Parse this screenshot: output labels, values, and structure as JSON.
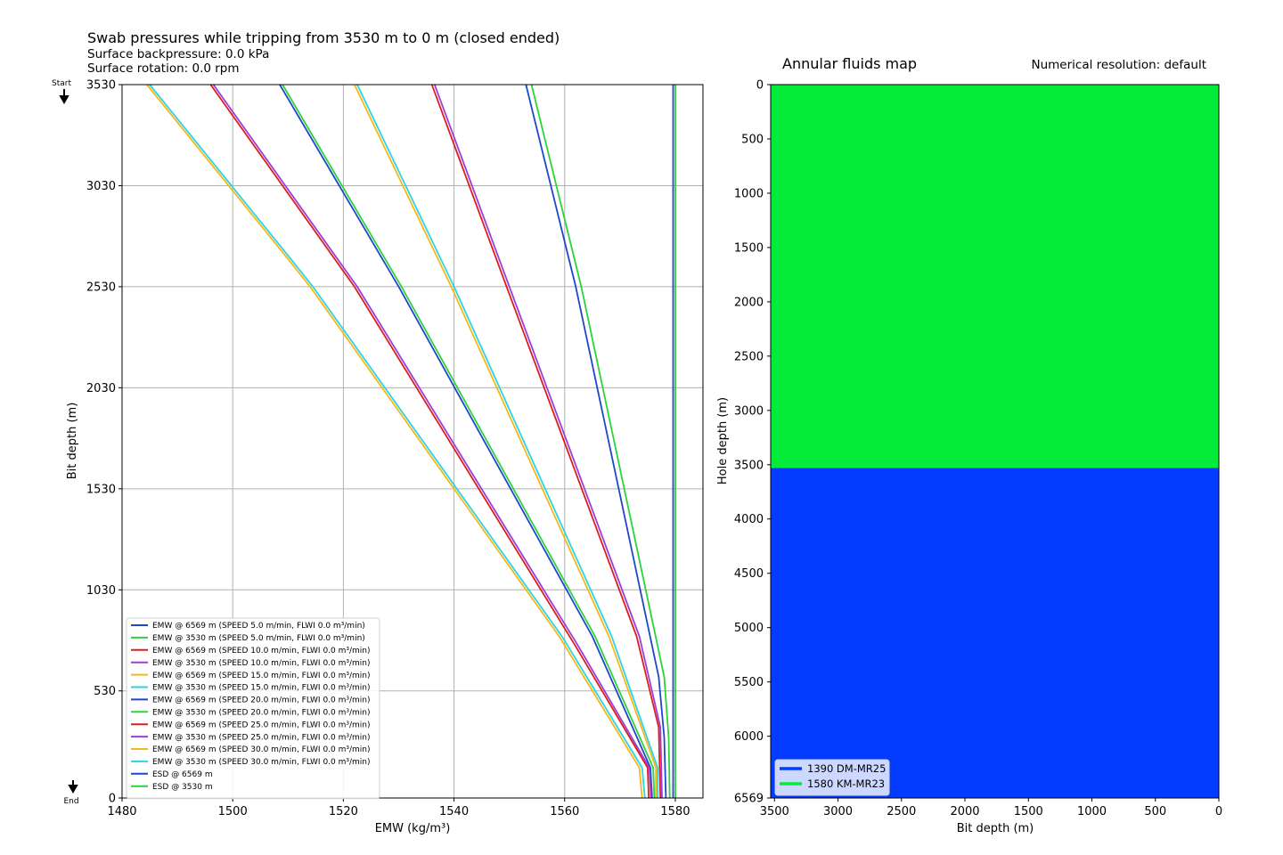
{
  "chart_data": [
    {
      "type": "line",
      "title": "Swab pressures while tripping from 3530 m to 0 m (closed ended)",
      "subtitle_lines": [
        "Surface backpressure: 0.0 kPa",
        "Surface rotation: 0.0 rpm"
      ],
      "xlabel": "EMW (kg/m³)",
      "ylabel": "Bit depth (m)",
      "xlim": [
        1480,
        1585
      ],
      "ylim": [
        0,
        3530
      ],
      "y_inverted_display": true,
      "xticks": [
        1480,
        1500,
        1520,
        1540,
        1560,
        1580
      ],
      "yticks": [
        3530,
        3030,
        2530,
        2030,
        1530,
        1030,
        530,
        0
      ],
      "grid": true,
      "start_label": "Start",
      "end_label": "End",
      "legend_position": "lower-left",
      "series": [
        {
          "name": "EMW @ 6569 m (SPEED 5.0 m/min, FLWI 0.0 m³/min)",
          "color": "#2047c8",
          "points": [
            [
              1553.0,
              3530
            ],
            [
              1562.0,
              2530
            ],
            [
              1577.0,
              600
            ],
            [
              1578.0,
              300
            ],
            [
              1578.3,
              0
            ]
          ]
        },
        {
          "name": "EMW @ 3530 m (SPEED 5.0 m/min, FLWI 0.0 m³/min)",
          "color": "#2ed23a",
          "points": [
            [
              1554.0,
              3530
            ],
            [
              1563.0,
              2530
            ],
            [
              1578.0,
              600
            ],
            [
              1578.8,
              300
            ],
            [
              1579.0,
              0
            ]
          ]
        },
        {
          "name": "EMW @ 6569 m (SPEED 10.0 m/min, FLWI 0.0 m³/min)",
          "color": "#dd1e1e",
          "points": [
            [
              1536.0,
              3530
            ],
            [
              1549.5,
              2530
            ],
            [
              1573.0,
              800
            ],
            [
              1577.0,
              350
            ],
            [
              1577.3,
              0
            ]
          ]
        },
        {
          "name": "EMW @ 3530 m (SPEED 10.0 m/min, FLWI 0.0 m³/min)",
          "color": "#9a3fd8",
          "points": [
            [
              1536.5,
              3530
            ],
            [
              1550.0,
              2530
            ],
            [
              1573.5,
              800
            ],
            [
              1577.3,
              350
            ],
            [
              1577.6,
              0
            ]
          ]
        },
        {
          "name": "EMW @ 6569 m (SPEED 15.0 m/min, FLWI 0.0 m³/min)",
          "color": "#f6b818",
          "points": [
            [
              1522.0,
              3530
            ],
            [
              1539.5,
              2530
            ],
            [
              1568.0,
              800
            ],
            [
              1576.5,
              150
            ],
            [
              1576.5,
              0
            ]
          ]
        },
        {
          "name": "EMW @ 3530 m (SPEED 15.0 m/min, FLWI 0.0 m³/min)",
          "color": "#2ad4e6",
          "points": [
            [
              1522.5,
              3530
            ],
            [
              1540.0,
              2530
            ],
            [
              1568.5,
              800
            ],
            [
              1576.8,
              150
            ],
            [
              1576.8,
              0
            ]
          ]
        },
        {
          "name": "EMW @ 6569 m (SPEED 20.0 m/min, FLWI 0.0 m³/min)",
          "color": "#2047c8",
          "points": [
            [
              1508.5,
              3530
            ],
            [
              1530.0,
              2530
            ],
            [
              1565.0,
              800
            ],
            [
              1575.5,
              150
            ],
            [
              1575.8,
              0
            ]
          ]
        },
        {
          "name": "EMW @ 3530 m (SPEED 20.0 m/min, FLWI 0.0 m³/min)",
          "color": "#2ed23a",
          "points": [
            [
              1509.0,
              3530
            ],
            [
              1530.5,
              2530
            ],
            [
              1565.5,
              800
            ],
            [
              1576.0,
              150
            ],
            [
              1576.2,
              0
            ]
          ]
        },
        {
          "name": "EMW @ 6569 m (SPEED 25.0 m/min, FLWI 0.0 m³/min)",
          "color": "#dd1e1e",
          "points": [
            [
              1496.0,
              3530
            ],
            [
              1522.0,
              2530
            ],
            [
              1562.0,
              750
            ],
            [
              1575.0,
              150
            ],
            [
              1575.2,
              0
            ]
          ]
        },
        {
          "name": "EMW @ 3530 m (SPEED 25.0 m/min, FLWI 0.0 m³/min)",
          "color": "#9a3fd8",
          "points": [
            [
              1496.5,
              3530
            ],
            [
              1522.5,
              2530
            ],
            [
              1562.5,
              750
            ],
            [
              1575.3,
              150
            ],
            [
              1575.6,
              0
            ]
          ]
        },
        {
          "name": "EMW @ 6569 m (SPEED 30.0 m/min, FLWI 0.0 m³/min)",
          "color": "#f6b818",
          "points": [
            [
              1484.5,
              3530
            ],
            [
              1510.5,
              2650
            ],
            [
              1514.0,
              2530
            ],
            [
              1559.0,
              800
            ],
            [
              1573.5,
              150
            ],
            [
              1574.0,
              0
            ]
          ]
        },
        {
          "name": "EMW @ 3530 m (SPEED 30.0 m/min, FLWI 0.0 m³/min)",
          "color": "#2ad4e6",
          "points": [
            [
              1485.0,
              3530
            ],
            [
              1511.0,
              2650
            ],
            [
              1514.5,
              2530
            ],
            [
              1559.5,
              800
            ],
            [
              1574.0,
              150
            ],
            [
              1574.5,
              0
            ]
          ]
        },
        {
          "name": "ESD @ 6569 m",
          "color": "#2047c8",
          "points": [
            [
              1579.6,
              3530
            ],
            [
              1579.6,
              0
            ]
          ]
        },
        {
          "name": "ESD @ 3530 m",
          "color": "#2ed23a",
          "points": [
            [
              1580.0,
              3530
            ],
            [
              1580.0,
              0
            ]
          ]
        }
      ]
    },
    {
      "type": "area",
      "title": "Annular fluids map",
      "note": "Numerical resolution: default",
      "xlabel": "Bit depth (m)",
      "ylabel": "Hole depth (m)",
      "xlim": [
        3530,
        0
      ],
      "ylim": [
        0,
        6569
      ],
      "y_inverted_display": true,
      "xticks": [
        3500,
        3000,
        2500,
        2000,
        1500,
        1000,
        500,
        0
      ],
      "yticks": [
        0,
        500,
        1000,
        1500,
        2000,
        2500,
        3000,
        3500,
        4000,
        4500,
        5000,
        5500,
        6000,
        6569
      ],
      "grid": false,
      "legend_position": "lower-left",
      "regions": [
        {
          "name": "1580 KM-MR23",
          "color": "#04ec3a",
          "depth_from": 0,
          "depth_to": 3530
        },
        {
          "name": "1390 DM-MR25",
          "color": "#043cff",
          "depth_from": 3530,
          "depth_to": 6569
        }
      ],
      "legend": [
        {
          "name": "1390 DM-MR25",
          "color": "#043cff"
        },
        {
          "name": "1580 KM-MR23",
          "color": "#04ec3a"
        }
      ]
    }
  ]
}
